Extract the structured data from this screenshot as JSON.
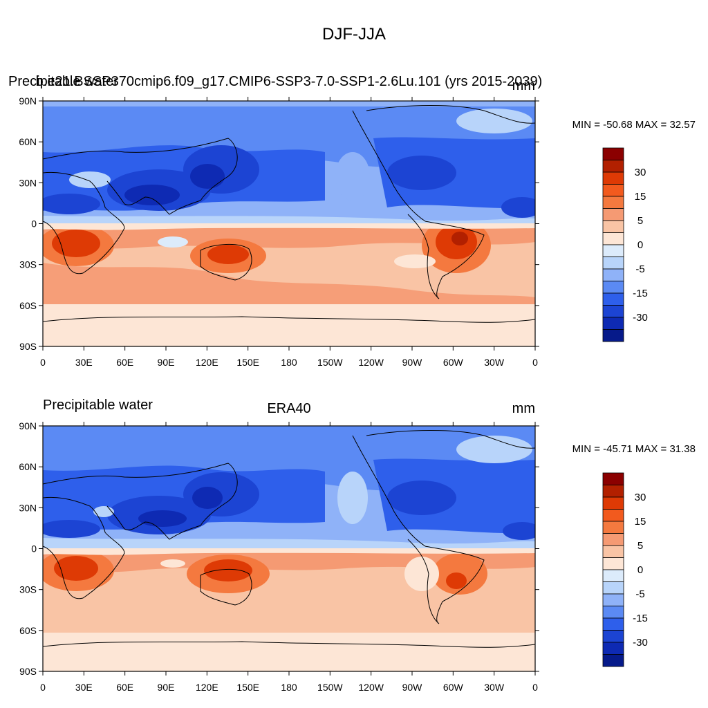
{
  "main_title": "DJF-JJA",
  "colors": {
    "levels": [
      "#8B0000",
      "#B22000",
      "#DE3A05",
      "#F25A1E",
      "#F4793F",
      "#F59A73",
      "#F9C4A5",
      "#FDE6D6",
      "#DCEBFB",
      "#B8D4FA",
      "#8FB2F8",
      "#5B8AF4",
      "#2E5FEB",
      "#1C44D3",
      "#0E2AB3",
      "#061A8A"
    ]
  },
  "panels": [
    {
      "left_title": "Precipitable water",
      "center_title": "b.e21.BSSP370cmip6.f09_g17.CMIP6-SSP3-7.0-SSP1-2.6Lu.101 (yrs 2015-2039)",
      "units": "mm",
      "stats": "MIN = -50.68 MAX =  32.57",
      "colorbar_labels": [
        "30",
        "15",
        "5",
        "0",
        "-5",
        "-15",
        "-30"
      ]
    },
    {
      "left_title": "Precipitable water",
      "center_title": "ERA40",
      "units": "mm",
      "stats": "MIN = -45.71 MAX =  31.38",
      "colorbar_labels": [
        "30",
        "15",
        "5",
        "0",
        "-5",
        "-15",
        "-30"
      ]
    }
  ],
  "lat_labels": [
    "90N",
    "60N",
    "30N",
    "0",
    "30S",
    "60S",
    "90S"
  ],
  "lon_labels": [
    "0",
    "30E",
    "60E",
    "90E",
    "120E",
    "150E",
    "180",
    "150W",
    "120W",
    "90W",
    "60W",
    "30W",
    "0"
  ]
}
